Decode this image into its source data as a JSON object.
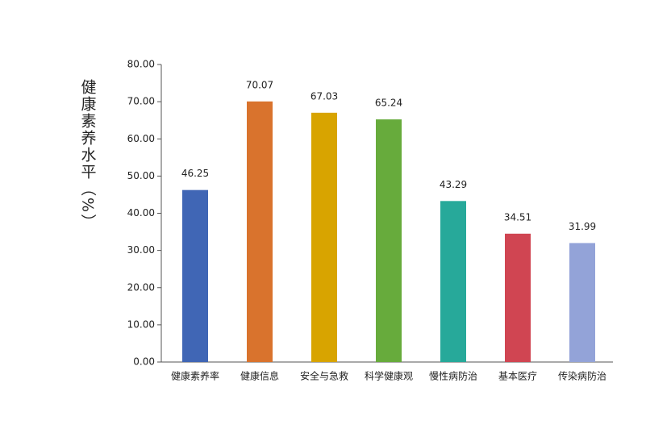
{
  "chart_data": {
    "type": "bar",
    "y_label": "健康素养水平（%）",
    "categories": [
      "健康素养率",
      "健康信息",
      "安全与急救",
      "科学健康观",
      "慢性病防治",
      "基本医疗",
      "传染病防治"
    ],
    "values": [
      46.25,
      70.07,
      67.03,
      65.24,
      43.29,
      34.51,
      31.99
    ],
    "colors": [
      "#4066b5",
      "#d9732d",
      "#d8a400",
      "#67ab3c",
      "#27a99a",
      "#d04552",
      "#93a3d8"
    ],
    "ylim": [
      0,
      80
    ],
    "yticks": [
      {
        "value": 0,
        "label": "0.00"
      },
      {
        "value": 10,
        "label": "10.00"
      },
      {
        "value": 20,
        "label": "20.00"
      },
      {
        "value": 30,
        "label": "30.00"
      },
      {
        "value": 40,
        "label": "40.00"
      },
      {
        "value": 50,
        "label": "50.00"
      },
      {
        "value": 60,
        "label": "60.00"
      },
      {
        "value": 70,
        "label": "70.00"
      },
      {
        "value": 80,
        "label": "80.00"
      }
    ],
    "grid": false
  }
}
